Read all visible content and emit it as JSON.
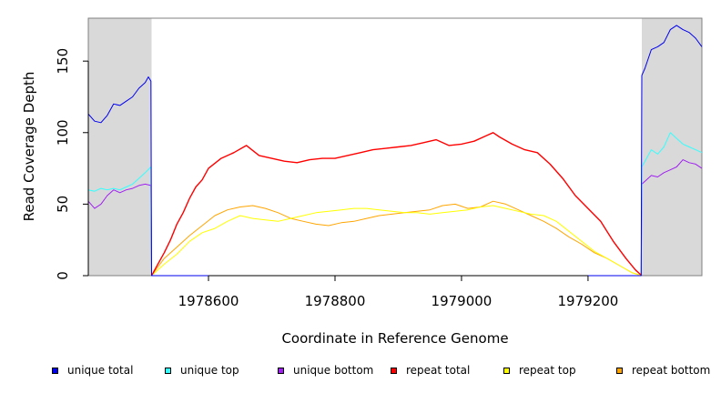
{
  "chart_data": {
    "type": "line",
    "title": "",
    "xlabel": "Coordinate in Reference Genome",
    "ylabel": "Read Coverage Depth",
    "xlim": [
      1978410,
      1979380
    ],
    "ylim": [
      0,
      180
    ],
    "xticks": [
      1978600,
      1978800,
      1979000,
      1979200
    ],
    "xtick_labels": [
      "1978600",
      "1978800",
      "1979000",
      "1979200"
    ],
    "yticks": [
      0,
      50,
      100,
      150
    ],
    "ytick_labels": [
      "0",
      "50",
      "100",
      "150"
    ],
    "shaded_regions": [
      [
        1978410,
        1978510
      ],
      [
        1979285,
        1979380
      ]
    ],
    "grid": false,
    "legend_position": "bottom",
    "series": [
      {
        "name": "unique total",
        "color": "#0000ee",
        "x": [
          1978410,
          1978420,
          1978430,
          1978440,
          1978450,
          1978460,
          1978470,
          1978480,
          1978490,
          1978500,
          1978505,
          1978509,
          1978510,
          1978600,
          1978800,
          1979000,
          1979200,
          1979284,
          1979285,
          1979290,
          1979300,
          1979310,
          1979320,
          1979330,
          1979340,
          1979350,
          1979360,
          1979370,
          1979380
        ],
        "y": [
          113,
          108,
          107,
          112,
          120,
          119,
          122,
          125,
          131,
          135,
          139,
          136,
          0,
          0,
          0,
          0,
          0,
          0,
          140,
          145,
          158,
          160,
          163,
          172,
          175,
          172,
          170,
          166,
          160
        ]
      },
      {
        "name": "unique top",
        "color": "#33ffff",
        "x": [
          1978410,
          1978420,
          1978430,
          1978440,
          1978450,
          1978460,
          1978470,
          1978480,
          1978490,
          1978500,
          1978509,
          1978510,
          1978600,
          1978800,
          1979000,
          1979200,
          1979284,
          1979285,
          1979290,
          1979300,
          1979310,
          1979320,
          1979330,
          1979340,
          1979350,
          1979360,
          1979370,
          1979380
        ],
        "y": [
          60,
          59,
          61,
          60,
          61,
          60,
          62,
          64,
          68,
          72,
          76,
          0,
          0,
          0,
          0,
          0,
          0,
          76,
          80,
          88,
          85,
          90,
          100,
          96,
          92,
          90,
          88,
          86
        ]
      },
      {
        "name": "unique bottom",
        "color": "#a020f0",
        "x": [
          1978410,
          1978420,
          1978430,
          1978440,
          1978450,
          1978460,
          1978470,
          1978480,
          1978490,
          1978500,
          1978509,
          1978510,
          1978600,
          1978800,
          1979000,
          1979200,
          1979284,
          1979285,
          1979290,
          1979300,
          1979310,
          1979320,
          1979330,
          1979340,
          1979350,
          1979360,
          1979370,
          1979380
        ],
        "y": [
          52,
          47,
          50,
          56,
          60,
          58,
          60,
          61,
          63,
          64,
          63,
          0,
          0,
          0,
          0,
          0,
          0,
          64,
          66,
          70,
          69,
          72,
          74,
          76,
          81,
          79,
          78,
          75
        ]
      },
      {
        "name": "repeat total",
        "color": "#ff0000",
        "x": [
          1978510,
          1978520,
          1978530,
          1978540,
          1978550,
          1978560,
          1978570,
          1978580,
          1978590,
          1978600,
          1978620,
          1978640,
          1978660,
          1978680,
          1978700,
          1978720,
          1978740,
          1978760,
          1978780,
          1978800,
          1978820,
          1978840,
          1978860,
          1978880,
          1978900,
          1978920,
          1978940,
          1978960,
          1978980,
          1979000,
          1979020,
          1979040,
          1979050,
          1979060,
          1979080,
          1979100,
          1979120,
          1979140,
          1979160,
          1979180,
          1979200,
          1979220,
          1979240,
          1979260,
          1979275,
          1979285
        ],
        "y": [
          0,
          8,
          16,
          25,
          36,
          44,
          54,
          62,
          67,
          75,
          82,
          86,
          91,
          84,
          82,
          80,
          79,
          81,
          82,
          82,
          84,
          86,
          88,
          89,
          90,
          91,
          93,
          95,
          91,
          92,
          94,
          98,
          100,
          97,
          92,
          88,
          86,
          78,
          68,
          56,
          47,
          38,
          24,
          12,
          4,
          0
        ]
      },
      {
        "name": "repeat top",
        "color": "#ffff00",
        "x": [
          1978510,
          1978530,
          1978550,
          1978570,
          1978590,
          1978610,
          1978630,
          1978650,
          1978670,
          1978690,
          1978710,
          1978730,
          1978750,
          1978770,
          1978790,
          1978810,
          1978830,
          1978850,
          1978870,
          1978890,
          1978910,
          1978930,
          1978950,
          1978970,
          1978990,
          1979010,
          1979030,
          1979050,
          1979070,
          1979090,
          1979110,
          1979130,
          1979150,
          1979170,
          1979190,
          1979210,
          1979230,
          1979250,
          1979270,
          1979285
        ],
        "y": [
          0,
          8,
          15,
          24,
          30,
          33,
          38,
          42,
          40,
          39,
          38,
          40,
          42,
          44,
          45,
          46,
          47,
          47,
          46,
          45,
          44,
          44,
          43,
          44,
          45,
          46,
          48,
          49,
          47,
          45,
          43,
          42,
          38,
          31,
          24,
          17,
          12,
          7,
          2,
          0
        ]
      },
      {
        "name": "repeat bottom",
        "color": "#ffa500",
        "x": [
          1978510,
          1978530,
          1978550,
          1978570,
          1978590,
          1978610,
          1978630,
          1978650,
          1978670,
          1978690,
          1978710,
          1978730,
          1978750,
          1978770,
          1978790,
          1978810,
          1978830,
          1978850,
          1978870,
          1978890,
          1978910,
          1978930,
          1978950,
          1978970,
          1978990,
          1979010,
          1979030,
          1979050,
          1979070,
          1979090,
          1979110,
          1979130,
          1979150,
          1979170,
          1979190,
          1979210,
          1979230,
          1979250,
          1979270,
          1979285
        ],
        "y": [
          0,
          12,
          20,
          28,
          35,
          42,
          46,
          48,
          49,
          47,
          44,
          40,
          38,
          36,
          35,
          37,
          38,
          40,
          42,
          43,
          44,
          45,
          46,
          49,
          50,
          47,
          48,
          52,
          50,
          46,
          42,
          38,
          33,
          27,
          22,
          16,
          12,
          7,
          2,
          0
        ]
      }
    ]
  }
}
